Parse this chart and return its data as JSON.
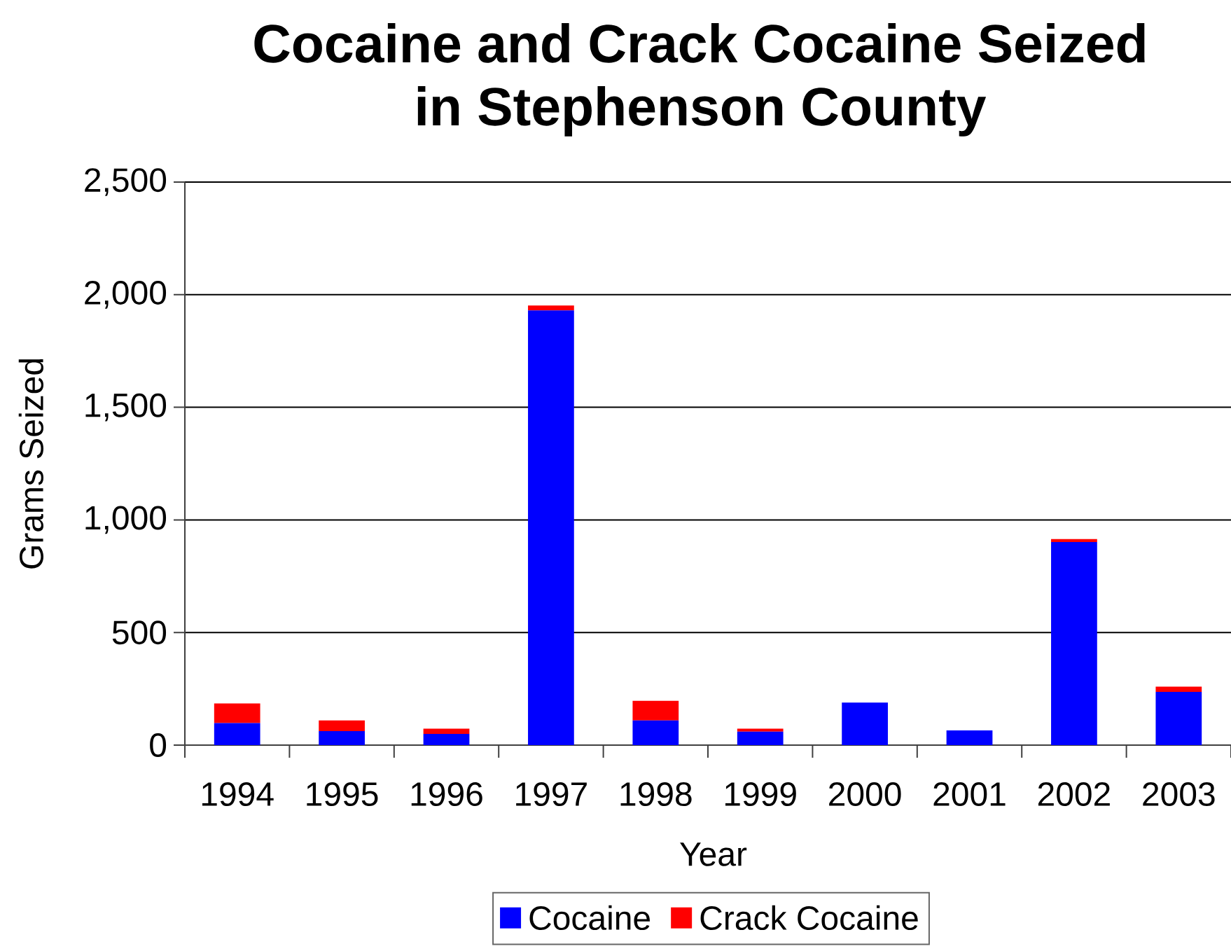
{
  "chart_data": {
    "type": "bar",
    "title": "Cocaine and Crack Cocaine Seized in Stephenson County",
    "xlabel": "Year",
    "ylabel": "Grams Seized",
    "categories": [
      "1994",
      "1995",
      "1996",
      "1997",
      "1998",
      "1999",
      "2000",
      "2001",
      "2002",
      "2003"
    ],
    "series": [
      {
        "name": "Cocaine",
        "color": "#0000ff",
        "values": [
          98,
          62,
          50,
          1930,
          110,
          60,
          189,
          65,
          902,
          236
        ]
      },
      {
        "name": "Crack Cocaine",
        "color": "#ff0000",
        "values": [
          87,
          48,
          23,
          22,
          87,
          13,
          0,
          0,
          13,
          24
        ]
      }
    ],
    "stacked": true,
    "ylim": [
      0,
      2500
    ],
    "yticks": [
      0,
      500,
      {
        "value": 1000,
        "label": "1,000"
      },
      {
        "value": 1500,
        "label": "1,500"
      },
      {
        "value": 2000,
        "label": "2,000"
      },
      {
        "value": 2500,
        "label": "2,500"
      }
    ],
    "grid": "y",
    "legend": "bottom"
  }
}
